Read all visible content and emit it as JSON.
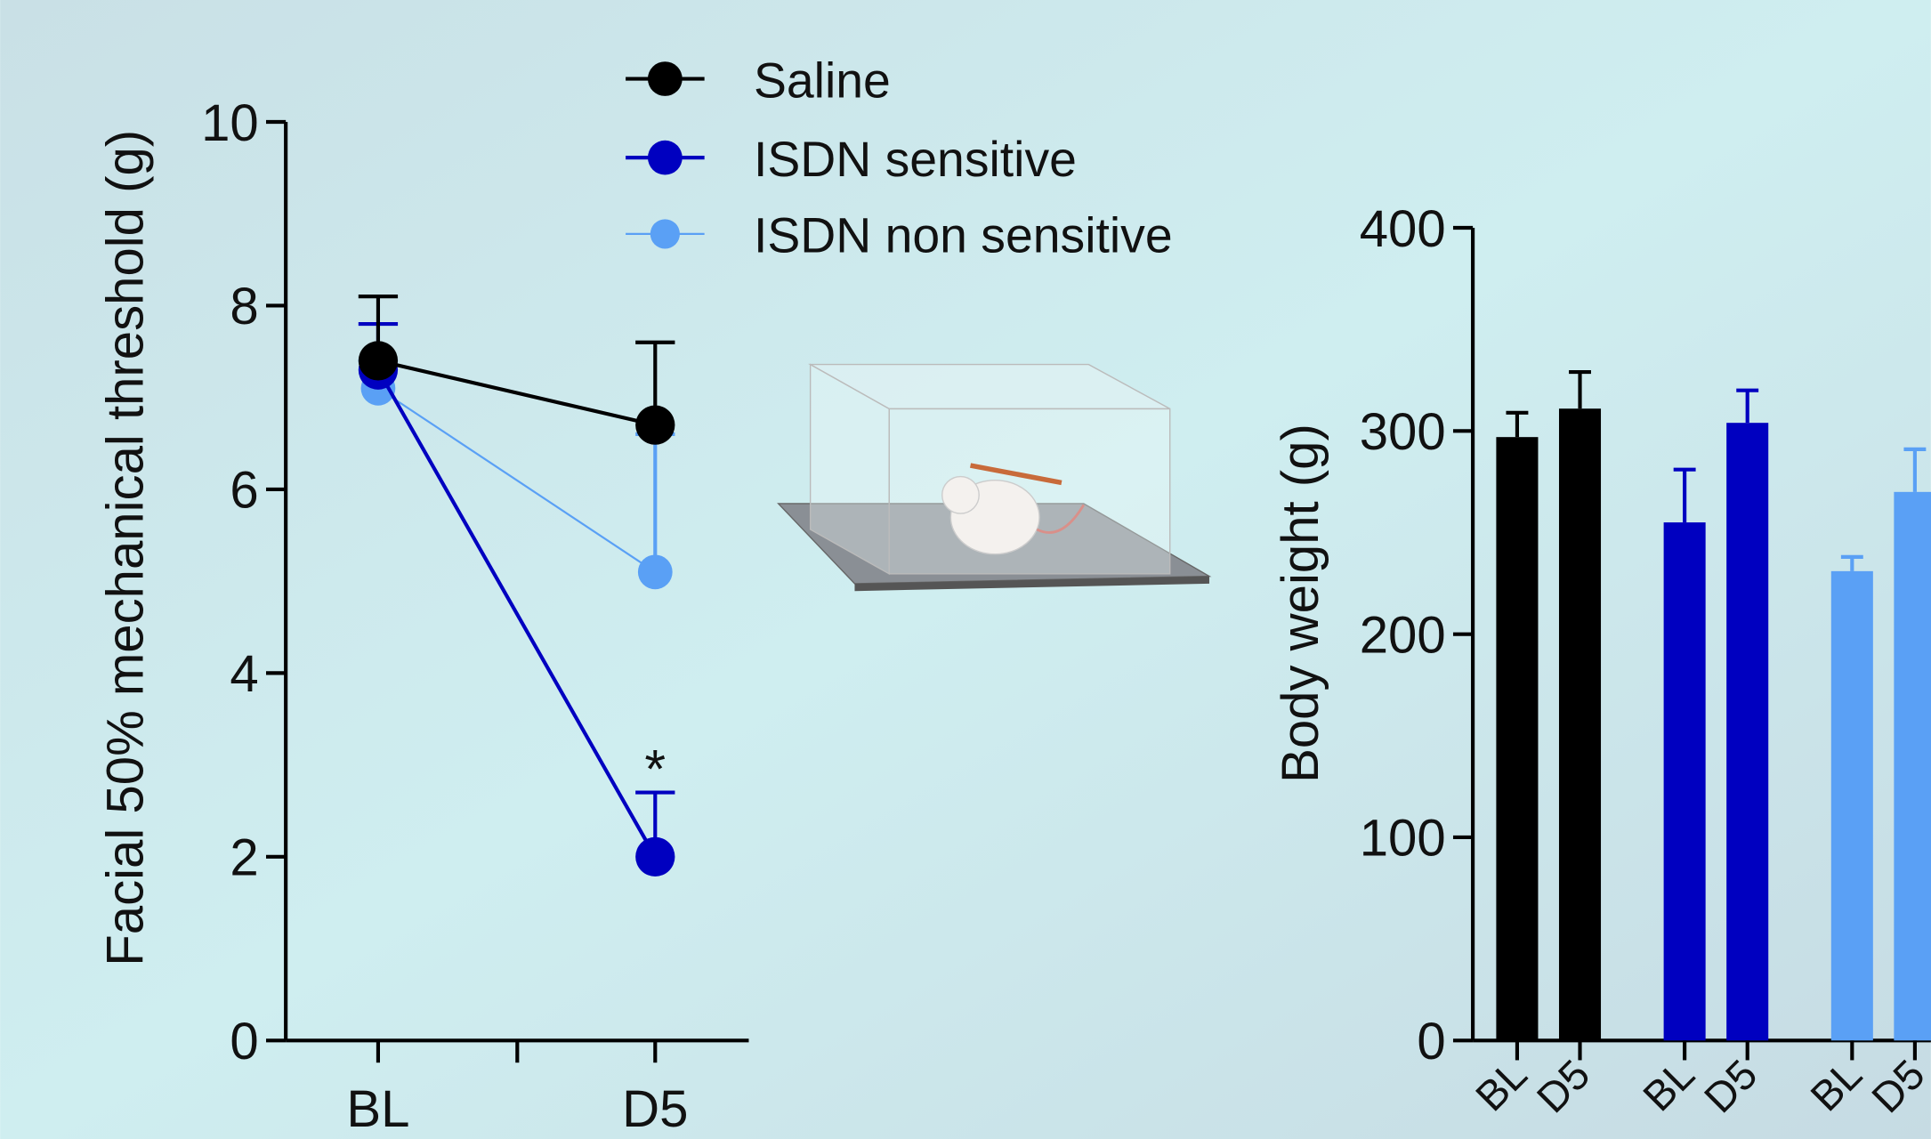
{
  "chart_data": [
    {
      "type": "line",
      "ylabel": "Facial 50% mechanical threshold (g)",
      "categories": [
        "BL",
        "D5"
      ],
      "series": [
        {
          "name": "Saline",
          "color": "#000000",
          "values": [
            7.4,
            6.7
          ],
          "errors": [
            0.7,
            0.9
          ]
        },
        {
          "name": "ISDN sensitive",
          "color": "#0000c0",
          "values": [
            7.3,
            2.0
          ],
          "errors": [
            0.5,
            0.7
          ]
        },
        {
          "name": "ISDN non sensitive",
          "color": "#5aa0f5",
          "values": [
            7.1,
            5.1
          ],
          "errors": [
            0.3,
            1.5
          ]
        }
      ],
      "ylim": [
        0,
        10
      ],
      "yticks": [
        0,
        2,
        4,
        6,
        8,
        10
      ],
      "annotation": "*"
    },
    {
      "type": "bar",
      "ylabel": "Body weight (g)",
      "categories": [
        "BL",
        "D5",
        "BL",
        "D5",
        "BL",
        "D5"
      ],
      "values": [
        297,
        311,
        255,
        304,
        231,
        270
      ],
      "errors": [
        12,
        18,
        26,
        16,
        7,
        21
      ],
      "colors": [
        "#000000",
        "#000000",
        "#0000c0",
        "#0000c0",
        "#5aa0f5",
        "#5aa0f5"
      ],
      "ylim": [
        0,
        400
      ],
      "yticks": [
        0,
        100,
        200,
        300,
        400
      ]
    }
  ]
}
